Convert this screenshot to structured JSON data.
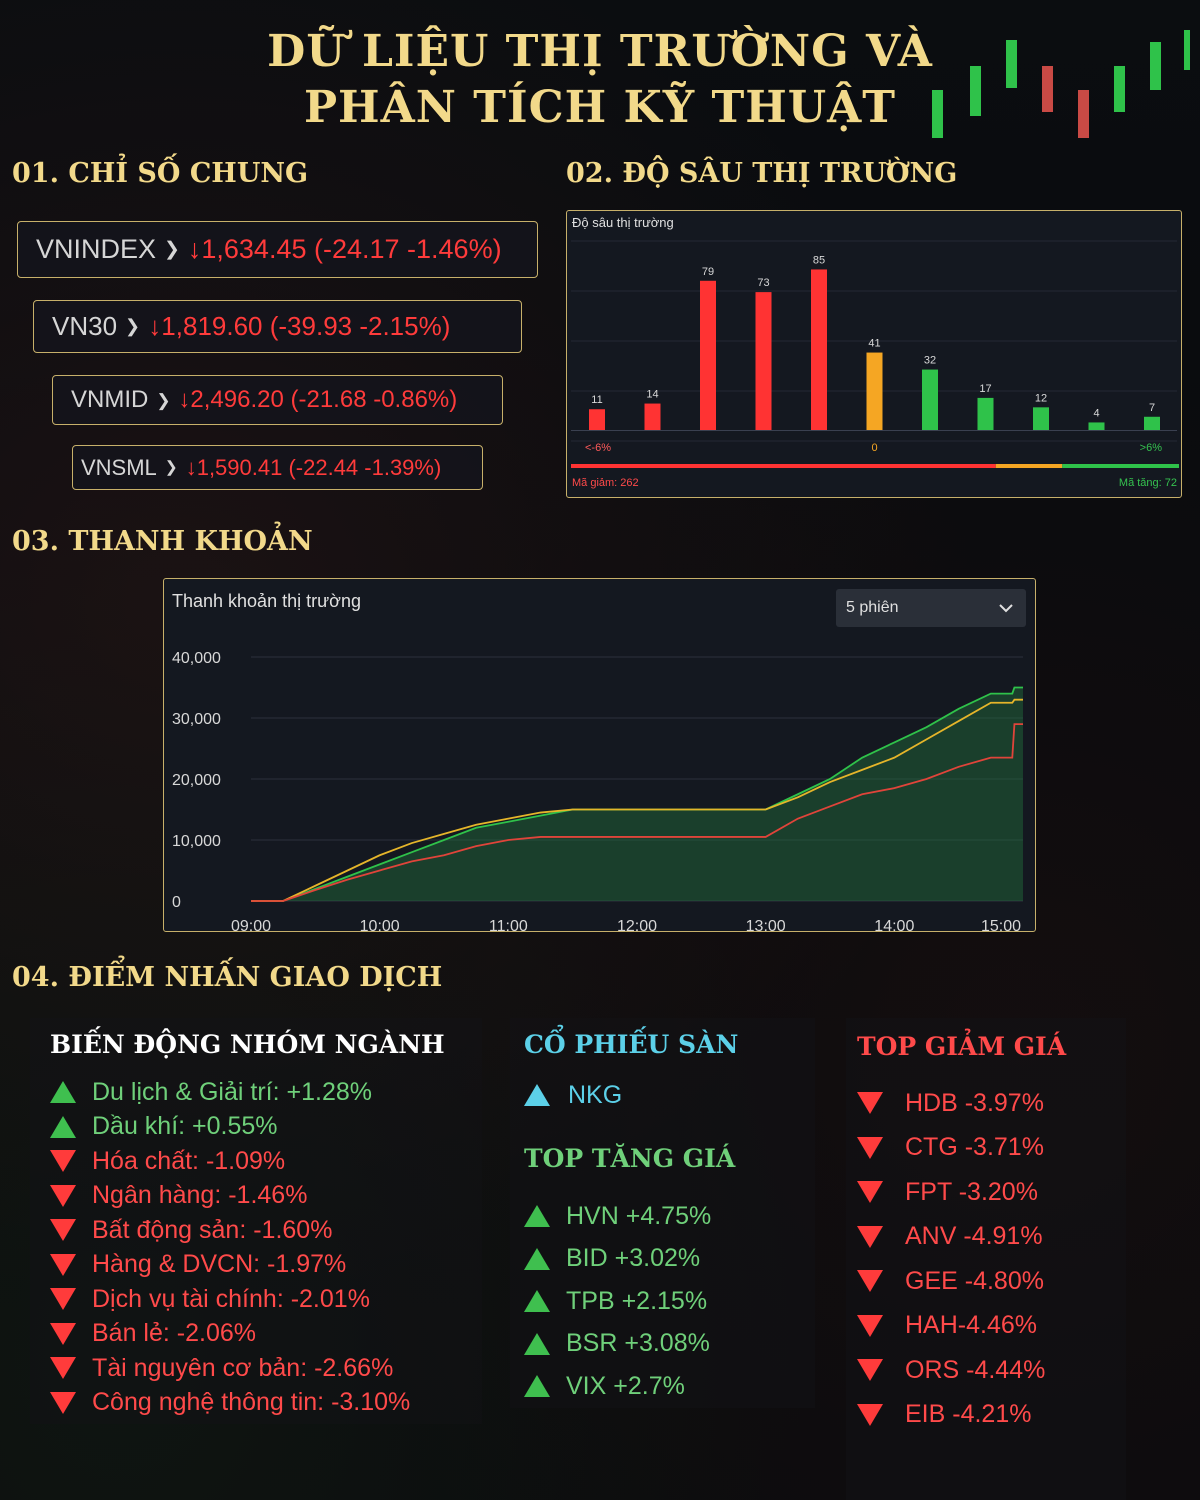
{
  "title_line1": "DỮ LIỆU THỊ TRƯỜNG VÀ",
  "title_line2": "PHÂN TÍCH KỸ THUẬT",
  "sections": {
    "s1": "01. CHỈ SỐ CHUNG",
    "s2": "02. ĐỘ SÂU THỊ TRƯỜNG",
    "s3": "03. THANH KHOẢN",
    "s4": "04. ĐIỂM NHẤN GIAO DỊCH"
  },
  "indices": [
    {
      "name": "VNINDEX",
      "value": "↓1,634.45 (-24.17 -1.46%)"
    },
    {
      "name": "VN30",
      "value": "↓1,819.60 (-39.93 -2.15%)"
    },
    {
      "name": "VNMID",
      "value": "↓2,496.20 (-21.68 -0.86%)"
    },
    {
      "name": "VNSML",
      "value": "↓1,590.41 (-22.44 -1.39%)"
    }
  ],
  "chart_data": [
    {
      "type": "bar",
      "title": "Độ sâu thị trường",
      "values": [
        11,
        14,
        79,
        73,
        85,
        41,
        32,
        17,
        12,
        4,
        7
      ],
      "bar_colors": [
        "#ff3333",
        "#ff3333",
        "#ff3333",
        "#ff3333",
        "#ff3333",
        "#f5a623",
        "#2fc24a",
        "#2fc24a",
        "#2fc24a",
        "#2fc24a",
        "#2fc24a"
      ],
      "axis_labels": {
        "left": "<-6%",
        "center": "0",
        "right": ">6%"
      },
      "footer_left": "Mã giảm: 262",
      "footer_right": "Mã tăng: 72"
    },
    {
      "type": "line",
      "title": "Thanh khoản thị trường",
      "selector": "5 phiên",
      "x_ticks": [
        "09:00",
        "10:00",
        "11:00",
        "12:00",
        "13:00",
        "14:00",
        "15:00"
      ],
      "y_ticks": [
        "0",
        "10,000",
        "20,000",
        "30,000",
        "40,000"
      ],
      "ylim": [
        0,
        40000
      ],
      "x": [
        "09:00",
        "09:15",
        "09:30",
        "09:45",
        "10:00",
        "10:15",
        "10:30",
        "10:45",
        "11:00",
        "11:15",
        "11:30",
        "12:00",
        "13:00",
        "13:15",
        "13:30",
        "13:45",
        "14:00",
        "14:15",
        "14:30",
        "14:45",
        "14:55",
        "14:56",
        "15:00"
      ],
      "series": [
        {
          "color": "#2fc24a",
          "values": [
            0,
            0,
            2000,
            4000,
            6000,
            8000,
            10000,
            12000,
            13000,
            14000,
            15000,
            15000,
            15000,
            17500,
            20000,
            23500,
            26000,
            28500,
            31500,
            34000,
            34000,
            35000,
            35000
          ]
        },
        {
          "color": "#e5b52a",
          "values": [
            0,
            0,
            2500,
            5000,
            7500,
            9500,
            11000,
            12500,
            13500,
            14500,
            15000,
            15000,
            15000,
            17000,
            19500,
            21500,
            23500,
            26500,
            29500,
            32500,
            32500,
            33000,
            33000
          ]
        },
        {
          "color": "#e0443a",
          "values": [
            0,
            0,
            1800,
            3500,
            5000,
            6500,
            7500,
            9000,
            10000,
            10500,
            10500,
            10500,
            10500,
            13500,
            15500,
            17500,
            18500,
            20000,
            22000,
            23500,
            23500,
            29000,
            29000
          ]
        }
      ]
    }
  ],
  "highlights": {
    "sectors_title": "BIẾN ĐỘNG NHÓM NGÀNH",
    "sectors": [
      {
        "text": "Du lịch & Giải trí: +1.28%",
        "dir": "up"
      },
      {
        "text": "Dầu khí: +0.55%",
        "dir": "up"
      },
      {
        "text": "Hóa chất: -1.09%",
        "dir": "down"
      },
      {
        "text": "Ngân hàng: -1.46%",
        "dir": "down"
      },
      {
        "text": "Bất động sản: -1.60%",
        "dir": "down"
      },
      {
        "text": "Hàng & DVCN: -1.97%",
        "dir": "down"
      },
      {
        "text": "Dịch vụ tài chính: -2.01%",
        "dir": "down"
      },
      {
        "text": "Bán lẻ: -2.06%",
        "dir": "down"
      },
      {
        "text": "Tài nguyên cơ bản: -2.66%",
        "dir": "down"
      },
      {
        "text": "Công nghệ thông tin: -3.10%",
        "dir": "down"
      }
    ],
    "floor_title": "CỔ PHIẾU SÀN",
    "floor": [
      {
        "text": "NKG"
      }
    ],
    "gainers_title": "TOP TĂNG GIÁ",
    "gainers": [
      {
        "text": "HVN +4.75%"
      },
      {
        "text": "BID +3.02%"
      },
      {
        "text": "TPB +2.15%"
      },
      {
        "text": "BSR +3.08%"
      },
      {
        "text": "VIX +2.7%"
      }
    ],
    "losers_title": "TOP GIẢM GIÁ",
    "losers": [
      {
        "text": "HDB -3.97%"
      },
      {
        "text": "CTG -3.71%"
      },
      {
        "text": "FPT -3.20%"
      },
      {
        "text": "ANV -4.91%"
      },
      {
        "text": "GEE -4.80%"
      },
      {
        "text": "HAH-4.46%"
      },
      {
        "text": "ORS -4.44%"
      },
      {
        "text": "EIB -4.21%"
      }
    ]
  },
  "colors": {
    "gold": "#f2d98a",
    "up": "#3fbf4f",
    "down": "#ff3b3b",
    "cyan": "#5cd0e8"
  }
}
